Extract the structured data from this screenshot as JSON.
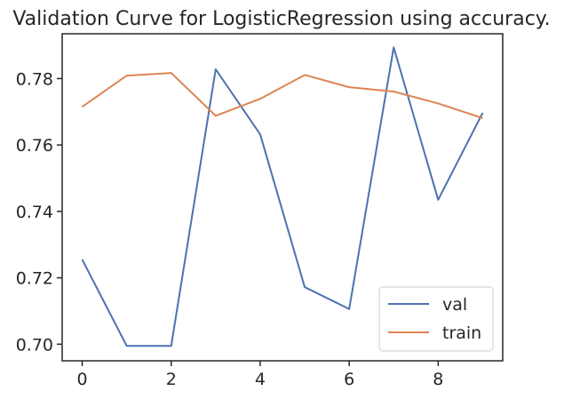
{
  "chart_data": {
    "type": "line",
    "title": "Validation Curve for LogisticRegression using accuracy.",
    "xlabel": "",
    "ylabel": "",
    "x": [
      0,
      1,
      2,
      3,
      4,
      5,
      6,
      7,
      8,
      9
    ],
    "xlim": [
      -0.45,
      9.45
    ],
    "ylim": [
      0.695,
      0.7935
    ],
    "xticks": [
      0,
      2,
      4,
      6,
      8
    ],
    "xtick_labels": [
      "0",
      "2",
      "4",
      "6",
      "8"
    ],
    "yticks": [
      0.7,
      0.72,
      0.74,
      0.76,
      0.78
    ],
    "ytick_labels": [
      "0.70",
      "0.72",
      "0.74",
      "0.76",
      "0.78"
    ],
    "grid": false,
    "legend_position": "lower-right",
    "series": [
      {
        "name": "val",
        "color": "#4c72b0",
        "values": [
          0.7255,
          0.6995,
          0.6995,
          0.7828,
          0.7632,
          0.7172,
          0.7106,
          0.7894,
          0.7435,
          0.7697
        ]
      },
      {
        "name": "train",
        "color": "#dd8452",
        "values": [
          0.7715,
          0.7809,
          0.7817,
          0.7688,
          0.7739,
          0.7811,
          0.7774,
          0.7761,
          0.7725,
          0.7681
        ]
      }
    ]
  }
}
